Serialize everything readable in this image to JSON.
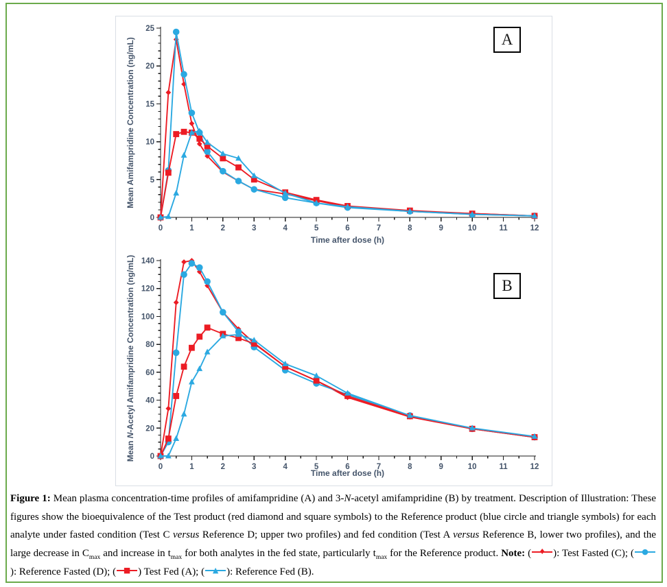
{
  "colors": {
    "red": "#EC1C24",
    "blue": "#2BA9E1",
    "axis_text": "#44546A",
    "axis_line": "#1a1a1a",
    "chart_border": "#d9dee5",
    "frame_green": "#6BAA4B"
  },
  "chart_data": [
    {
      "type": "line",
      "panel_label": "A",
      "xlabel": "Time after dose (h)",
      "ylabel_parts": [
        {
          "t": "Mean Amifampridine Concentration (ng/mL)"
        }
      ],
      "xlim": [
        0,
        12
      ],
      "ylim": [
        0,
        25
      ],
      "x_ticks": [
        0,
        1,
        2,
        3,
        4,
        5,
        6,
        7,
        8,
        9,
        10,
        11,
        12
      ],
      "y_ticks": [
        0,
        5,
        10,
        15,
        20,
        25
      ],
      "x_minor_step": 0.5,
      "y_minor_step": 1,
      "grid": false,
      "legend_position": "none",
      "x": [
        0,
        0.25,
        0.5,
        0.75,
        1,
        1.25,
        1.5,
        2,
        2.5,
        3,
        4,
        5,
        6,
        8,
        10,
        12
      ],
      "series": [
        {
          "name": "Test Fasted (C)",
          "marker": "diamond",
          "color": "#EC1C24",
          "values": [
            0,
            16.5,
            23.5,
            17.6,
            12.4,
            9.7,
            8.1,
            6.0,
            4.8,
            3.7,
            3.1,
            2.2,
            1.4,
            0.8,
            0.5,
            0.2
          ]
        },
        {
          "name": "Reference Fasted (D)",
          "marker": "circle",
          "color": "#2BA9E1",
          "values": [
            0,
            6.2,
            24.5,
            18.9,
            13.8,
            11.2,
            8.7,
            6.1,
            4.8,
            3.7,
            2.6,
            1.9,
            1.3,
            0.8,
            0.4,
            0.2
          ]
        },
        {
          "name": "Test Fed (A)",
          "marker": "square",
          "color": "#EC1C24",
          "values": [
            0,
            5.9,
            11.0,
            11.3,
            11.2,
            10.4,
            9.4,
            7.8,
            6.6,
            5.0,
            3.3,
            2.3,
            1.5,
            0.9,
            0.5,
            0.2
          ]
        },
        {
          "name": "Reference Fed (B)",
          "marker": "triangle",
          "color": "#2BA9E1",
          "values": [
            0,
            0.1,
            3.2,
            8.2,
            11.2,
            11.4,
            9.9,
            8.4,
            7.8,
            5.5,
            3.2,
            1.9,
            1.4,
            0.8,
            0.4,
            0.2
          ]
        }
      ]
    },
    {
      "type": "line",
      "panel_label": "B",
      "xlabel": "Time after dose (h)",
      "ylabel_parts": [
        {
          "t": "Mean "
        },
        {
          "t": "N",
          "i": true
        },
        {
          "t": "-Acetyl Amifampridine Concentration (ng/mL)"
        }
      ],
      "xlim": [
        0,
        12
      ],
      "ylim": [
        0,
        140
      ],
      "x_ticks": [
        0,
        1,
        2,
        3,
        4,
        5,
        6,
        7,
        8,
        9,
        10,
        11,
        12
      ],
      "y_ticks": [
        0,
        20,
        40,
        60,
        80,
        100,
        120,
        140
      ],
      "x_minor_step": 0.5,
      "y_minor_step": 5,
      "grid": false,
      "legend_position": "none",
      "x": [
        0,
        0.25,
        0.5,
        0.75,
        1,
        1.25,
        1.5,
        2,
        2.5,
        3,
        4,
        5,
        6,
        8,
        10,
        12
      ],
      "series": [
        {
          "name": "Test Fasted (C)",
          "marker": "diamond",
          "color": "#EC1C24",
          "values": [
            0,
            34,
            110,
            139,
            140,
            132,
            122,
            103,
            91,
            81,
            64,
            54,
            42,
            28,
            19.5,
            13.5
          ]
        },
        {
          "name": "Reference Fasted (D)",
          "marker": "circle",
          "color": "#2BA9E1",
          "values": [
            0,
            10,
            74,
            130,
            138,
            135,
            125,
            103,
            89,
            78,
            61.5,
            52,
            44,
            29,
            19.5,
            13.5
          ]
        },
        {
          "name": "Test Fed (A)",
          "marker": "square",
          "color": "#EC1C24",
          "values": [
            0,
            12.5,
            43,
            64,
            77.5,
            85.5,
            92,
            87.5,
            84.5,
            80.5,
            64,
            54,
            43,
            28.5,
            19.5,
            13.5
          ]
        },
        {
          "name": "Reference Fed (B)",
          "marker": "triangle",
          "color": "#2BA9E1",
          "values": [
            0,
            0,
            12.5,
            30,
            53,
            62.5,
            74.5,
            86,
            87,
            83,
            66,
            57.5,
            45,
            29,
            20,
            14
          ]
        }
      ]
    }
  ],
  "caption": {
    "segments": [
      {
        "t": "Figure 1:",
        "b": true
      },
      {
        "t": " Mean plasma concentration-time profiles of amifampridine (A) and 3-"
      },
      {
        "t": "N",
        "i": true
      },
      {
        "t": "-acetyl amifampridine (B) by treatment. Description of Illustration: These figures show the bioequivalence of the Test product (red diamond and square symbols) to the Reference product (blue circle and triangle symbols) for each analyte under fasted condition (Test C "
      },
      {
        "t": "versus",
        "i": true
      },
      {
        "t": " Reference D; upper two profiles) and fed condition (Test A "
      },
      {
        "t": "versus",
        "i": true
      },
      {
        "t": " Reference B, lower two profiles), and the large decrease in C"
      },
      {
        "t": "max",
        "sub": true
      },
      {
        "t": " and increase in t"
      },
      {
        "t": "max",
        "sub": true
      },
      {
        "t": " for both analytes in the fed state, particularly t"
      },
      {
        "t": "max",
        "sub": true
      },
      {
        "t": " for the Reference product. "
      },
      {
        "t": "Note:",
        "b": true
      },
      {
        "t": " ("
      },
      {
        "sym": "diamond"
      },
      {
        "t": "): Test Fasted (C);  ("
      },
      {
        "sym": "circle"
      },
      {
        "t": "): Reference Fasted (D); ("
      },
      {
        "sym": "square"
      },
      {
        "t": ") Test Fed (A); ("
      },
      {
        "sym": "triangle"
      },
      {
        "t": "): Reference Fed (B)."
      }
    ],
    "symbol_glyphs": {
      "diamond": "♦",
      "circle": "●",
      "square": "■",
      "triangle": "▲"
    },
    "symbol_colors": {
      "diamond": "#EC1C24",
      "circle": "#2BA9E1",
      "square": "#EC1C24",
      "triangle": "#2BA9E1"
    }
  }
}
